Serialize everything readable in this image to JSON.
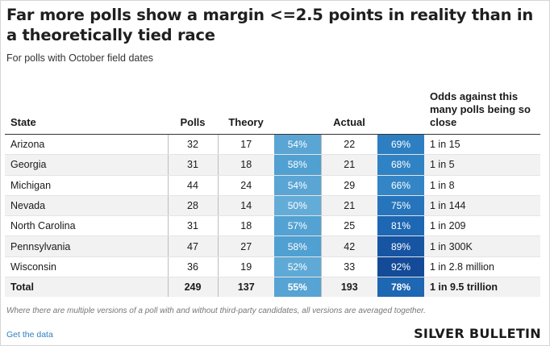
{
  "title": "Far more polls show a margin <=2.5 points in reality than in a theoretically tied race",
  "subtitle": "For polls with October field dates",
  "columns": [
    "State",
    "Polls",
    "Theory",
    "Actual",
    "Odds against this many polls being so close"
  ],
  "rows": [
    {
      "state": "Arizona",
      "polls": "32",
      "theory": "17",
      "theory_pct": "54%",
      "actual": "22",
      "actual_pct": "69%",
      "odds": "1 in 15"
    },
    {
      "state": "Georgia",
      "polls": "31",
      "theory": "18",
      "theory_pct": "58%",
      "actual": "21",
      "actual_pct": "68%",
      "odds": "1 in 5"
    },
    {
      "state": "Michigan",
      "polls": "44",
      "theory": "24",
      "theory_pct": "54%",
      "actual": "29",
      "actual_pct": "66%",
      "odds": "1 in 8"
    },
    {
      "state": "Nevada",
      "polls": "28",
      "theory": "14",
      "theory_pct": "50%",
      "actual": "21",
      "actual_pct": "75%",
      "odds": "1 in 144"
    },
    {
      "state": "North Carolina",
      "polls": "31",
      "theory": "18",
      "theory_pct": "57%",
      "actual": "25",
      "actual_pct": "81%",
      "odds": "1 in 209"
    },
    {
      "state": "Pennsylvania",
      "polls": "47",
      "theory": "27",
      "theory_pct": "58%",
      "actual": "42",
      "actual_pct": "89%",
      "odds": "1 in 300K"
    },
    {
      "state": "Wisconsin",
      "polls": "36",
      "theory": "19",
      "theory_pct": "52%",
      "actual": "33",
      "actual_pct": "92%",
      "odds": "1 in 2.8 million"
    }
  ],
  "total": {
    "state": "Total",
    "polls": "249",
    "theory": "137",
    "theory_pct": "55%",
    "actual": "193",
    "actual_pct": "78%",
    "odds": "1 in 9.5 trillion"
  },
  "colors": {
    "theory": [
      "#5aa5d4",
      "#50a0d2",
      "#5aa5d4",
      "#64acd8",
      "#53a2d3",
      "#50a0d2",
      "#5fa9d6",
      "#56a3d4"
    ],
    "actual": [
      "#2d7fc2",
      "#2f82c4",
      "#3385c6",
      "#2574bc",
      "#1d67b3",
      "#1755a3",
      "#134b98",
      "#1d67b3"
    ]
  },
  "footnote": "Where there are multiple versions of a poll with and without third-party candidates, all versions are averaged together.",
  "link_text": "Get the data",
  "brand": "SILVER BULLETIN"
}
